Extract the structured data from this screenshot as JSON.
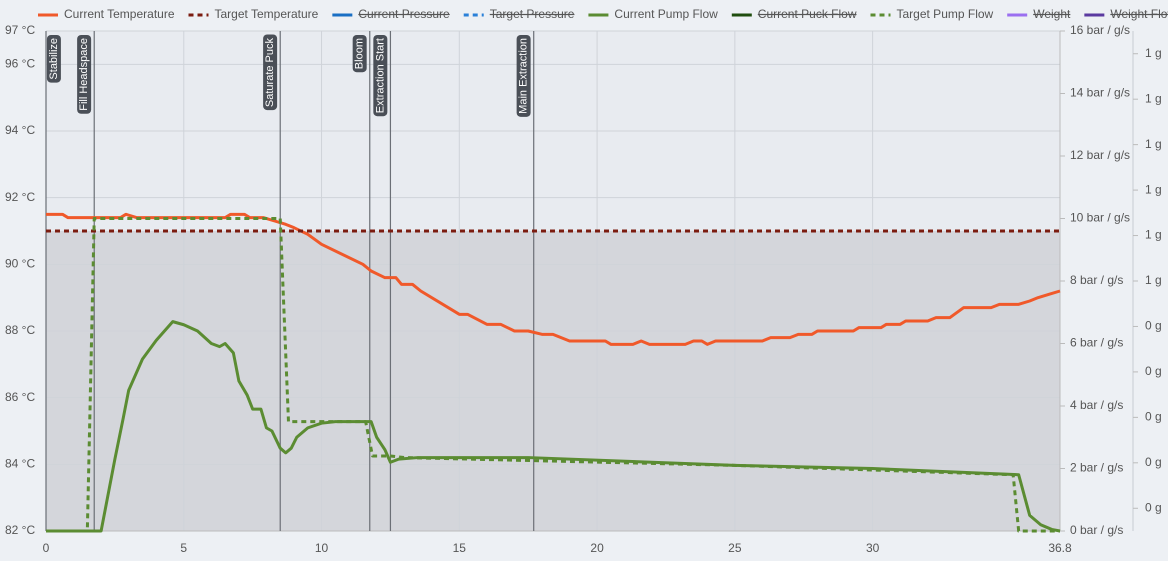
{
  "chart_data": {
    "type": "line",
    "xlim": [
      0,
      36.8
    ],
    "xticks": [
      0,
      5,
      10,
      15,
      20,
      25,
      30,
      36.8
    ],
    "ylim": [
      82,
      97
    ],
    "yticks": [
      {
        "value": 82,
        "label": "82 °C"
      },
      {
        "value": 84,
        "label": "84 °C"
      },
      {
        "value": 86,
        "label": "86 °C"
      },
      {
        "value": 88,
        "label": "88 °C"
      },
      {
        "value": 90,
        "label": "90 °C"
      },
      {
        "value": 92,
        "label": "92 °C"
      },
      {
        "value": 94,
        "label": "94 °C"
      },
      {
        "value": 96,
        "label": "96 °C"
      },
      {
        "value": 97,
        "label": "97 °C"
      }
    ],
    "y2lim": [
      0,
      16
    ],
    "y2ticks": [
      {
        "value": 0,
        "label": "0 bar / g/s"
      },
      {
        "value": 2,
        "label": "2 bar / g/s"
      },
      {
        "value": 4,
        "label": "4 bar / g/s"
      },
      {
        "value": 6,
        "label": "6 bar / g/s"
      },
      {
        "value": 8,
        "label": "8 bar / g/s"
      },
      {
        "value": 10,
        "label": "10 bar / g/s"
      },
      {
        "value": 12,
        "label": "12 bar / g/s"
      },
      {
        "value": 14,
        "label": "14 bar / g/s"
      },
      {
        "value": 16,
        "label": "16 bar / g/s"
      }
    ],
    "y3lim": [
      0,
      1.1
    ],
    "y3ticks": [
      {
        "value": 0.05,
        "label": "0 g"
      },
      {
        "value": 0.15,
        "label": "0 g"
      },
      {
        "value": 0.25,
        "label": "0 g"
      },
      {
        "value": 0.35,
        "label": "0 g"
      },
      {
        "value": 0.45,
        "label": "0 g"
      },
      {
        "value": 0.55,
        "label": "1 g"
      },
      {
        "value": 0.65,
        "label": "1 g"
      },
      {
        "value": 0.75,
        "label": "1 g"
      },
      {
        "value": 0.85,
        "label": "1 g"
      },
      {
        "value": 0.95,
        "label": "1 g"
      },
      {
        "value": 1.05,
        "label": "1 g"
      }
    ],
    "grid": true,
    "legend": "top",
    "annotations": [
      {
        "x": 0,
        "label": "Stabilize"
      },
      {
        "x": 1.75,
        "label": "Fill Headspace"
      },
      {
        "x": 8.5,
        "label": "Saturate Puck"
      },
      {
        "x": 11.75,
        "label": "Bloom"
      },
      {
        "x": 12.5,
        "label": "Extraction Start"
      },
      {
        "x": 17.7,
        "label": "Main Extraction"
      }
    ],
    "series": [
      {
        "name": "Current Temperature",
        "color": "#f0592a",
        "dashed": false,
        "hidden": false,
        "axis": "y",
        "x": [
          0,
          0.6,
          0.8,
          2.7,
          2.9,
          3.3,
          6.5,
          6.7,
          7.2,
          7.4,
          7.9,
          8.3,
          8.7,
          9,
          9.5,
          10,
          11.5,
          11.8,
          12.3,
          12.7,
          12.9,
          13.3,
          13.6,
          15,
          15.3,
          16,
          16.5,
          17,
          17.5,
          18,
          18.4,
          19,
          20.3,
          20.5,
          21.3,
          21.6,
          21.9,
          23.2,
          23.5,
          23.8,
          24,
          24.3,
          26,
          26.3,
          27,
          27.3,
          27.8,
          28,
          29.3,
          29.5,
          30.3,
          30.5,
          31,
          31.2,
          32,
          32.3,
          32.8,
          33.3,
          34.3,
          34.6,
          35.3,
          35.7,
          36,
          36.4,
          36.8
        ],
        "values": [
          91.5,
          91.5,
          91.4,
          91.4,
          91.5,
          91.4,
          91.4,
          91.5,
          91.5,
          91.4,
          91.4,
          91.3,
          91.2,
          91.1,
          90.9,
          90.6,
          90.0,
          89.8,
          89.6,
          89.6,
          89.4,
          89.4,
          89.2,
          88.5,
          88.5,
          88.2,
          88.2,
          88.0,
          88.0,
          87.9,
          87.9,
          87.7,
          87.7,
          87.6,
          87.6,
          87.7,
          87.6,
          87.6,
          87.7,
          87.7,
          87.6,
          87.7,
          87.7,
          87.8,
          87.8,
          87.9,
          87.9,
          88.0,
          88.0,
          88.1,
          88.1,
          88.2,
          88.2,
          88.3,
          88.3,
          88.4,
          88.4,
          88.7,
          88.7,
          88.8,
          88.8,
          88.9,
          89.0,
          89.1,
          89.2
        ]
      },
      {
        "name": "Target Temperature",
        "color": "#7b1c10",
        "dashed": true,
        "hidden": false,
        "axis": "y",
        "fill": "#d4d6db",
        "x": [
          0,
          36.8
        ],
        "values": [
          91,
          91
        ]
      },
      {
        "name": "Current Pressure",
        "color": "#1a6fc4",
        "dashed": false,
        "hidden": true,
        "axis": "y2"
      },
      {
        "name": "Target Pressure",
        "color": "#2a80d8",
        "dashed": true,
        "hidden": true,
        "axis": "y2"
      },
      {
        "name": "Current Pump Flow",
        "color": "#5b8c32",
        "dashed": false,
        "hidden": false,
        "axis": "y2",
        "x": [
          0,
          2,
          2.5,
          2.8,
          3,
          3.5,
          4,
          4.5,
          4.6,
          5,
          5.5,
          6,
          6.3,
          6.5,
          6.8,
          7,
          7.3,
          7.5,
          7.8,
          8,
          8.2,
          8.5,
          8.7,
          8.9,
          9.1,
          9.5,
          10,
          10.5,
          11.8,
          12,
          12.3,
          12.5,
          12.8,
          13.5,
          17.5,
          25,
          30,
          35.3,
          35.7,
          36.1,
          36.5,
          36.8
        ],
        "values": [
          0,
          0,
          2.3,
          3.6,
          4.5,
          5.5,
          6.1,
          6.6,
          6.7,
          6.6,
          6.4,
          6.0,
          5.9,
          6.0,
          5.7,
          4.8,
          4.35,
          3.9,
          3.9,
          3.3,
          3.2,
          2.65,
          2.5,
          2.65,
          3.0,
          3.3,
          3.45,
          3.5,
          3.5,
          3.0,
          2.6,
          2.2,
          2.3,
          2.35,
          2.35,
          2.1,
          2.0,
          1.8,
          0.5,
          0.2,
          0.05,
          0
        ]
      },
      {
        "name": "Current Puck Flow",
        "color": "#1f4d0e",
        "dashed": false,
        "hidden": true,
        "axis": "y2"
      },
      {
        "name": "Target Pump Flow",
        "color": "#5b8c32",
        "dashed": true,
        "hidden": false,
        "axis": "y2",
        "x": [
          0,
          1.5,
          1.75,
          8.5,
          8.8,
          11.6,
          11.85,
          12.5,
          13,
          25,
          35.1,
          35.3,
          36.8
        ],
        "values": [
          0,
          0,
          10,
          10,
          3.5,
          3.5,
          2.4,
          2.4,
          2.35,
          2.1,
          1.8,
          0,
          0
        ]
      },
      {
        "name": "Weight",
        "color": "#9b6ff0",
        "dashed": false,
        "hidden": true,
        "axis": "y3"
      },
      {
        "name": "Weight Flow",
        "color": "#5b3aa0",
        "dashed": false,
        "hidden": true,
        "axis": "y3"
      }
    ]
  }
}
